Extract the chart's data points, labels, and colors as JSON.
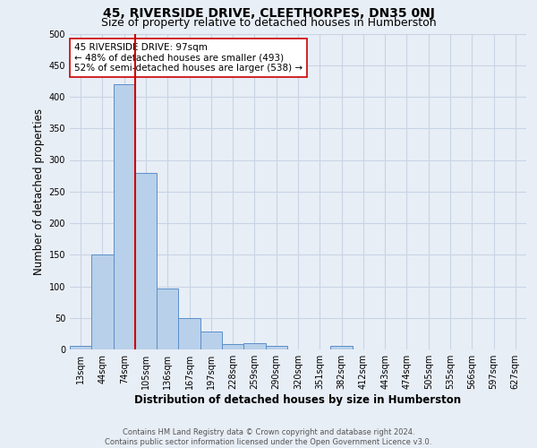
{
  "title": "45, RIVERSIDE DRIVE, CLEETHORPES, DN35 0NJ",
  "subtitle": "Size of property relative to detached houses in Humberston",
  "xlabel": "Distribution of detached houses by size in Humberston",
  "ylabel": "Number of detached properties",
  "categories": [
    "13sqm",
    "44sqm",
    "74sqm",
    "105sqm",
    "136sqm",
    "167sqm",
    "197sqm",
    "228sqm",
    "259sqm",
    "290sqm",
    "320sqm",
    "351sqm",
    "382sqm",
    "412sqm",
    "443sqm",
    "474sqm",
    "505sqm",
    "535sqm",
    "566sqm",
    "597sqm",
    "627sqm"
  ],
  "bar_values": [
    5,
    150,
    420,
    280,
    97,
    50,
    29,
    8,
    10,
    5,
    0,
    0,
    5,
    0,
    0,
    0,
    0,
    0,
    0,
    0,
    0
  ],
  "bar_color": "#b8d0ea",
  "bar_edge_color": "#5b8fc9",
  "bar_edge_width": 0.7,
  "grid_color": "#c8d4e4",
  "bg_color": "#e8eef6",
  "vline_color": "#cc0000",
  "vline_x_index": 2.5,
  "annotation_line1": "45 RIVERSIDE DRIVE: 97sqm",
  "annotation_line2": "← 48% of detached houses are smaller (493)",
  "annotation_line3": "52% of semi-detached houses are larger (538) →",
  "annotation_box_color": "#ffffff",
  "annotation_box_edge": "#cc0000",
  "footer_text": "Contains HM Land Registry data © Crown copyright and database right 2024.\nContains public sector information licensed under the Open Government Licence v3.0.",
  "ylim": [
    0,
    500
  ],
  "title_fontsize": 10,
  "subtitle_fontsize": 9,
  "axis_label_fontsize": 8.5,
  "tick_fontsize": 7,
  "footer_fontsize": 6,
  "annotation_fontsize": 7.5,
  "yticks": [
    0,
    50,
    100,
    150,
    200,
    250,
    300,
    350,
    400,
    450,
    500
  ]
}
